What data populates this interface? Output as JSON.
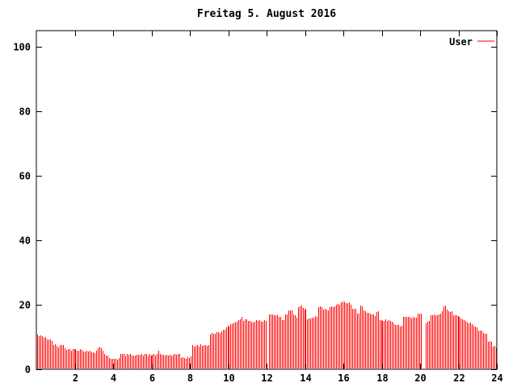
{
  "window": {
    "background": "#ffffff"
  },
  "colors": {
    "background": "#ffffff",
    "axis": "#000000",
    "bar": "#ff0000",
    "text": "#000000"
  },
  "chart_data": {
    "type": "bar",
    "title": "Freitag 5. August 2016",
    "xlabel": "",
    "ylabel": "",
    "grid": false,
    "x_axis": {
      "min": 0,
      "max": 24,
      "ticks": [
        2,
        4,
        6,
        8,
        10,
        12,
        14,
        16,
        18,
        20,
        22,
        24
      ]
    },
    "y_axis": {
      "min": 0,
      "max": 105,
      "ticks": [
        0,
        20,
        40,
        60,
        80,
        100
      ]
    },
    "legend": {
      "position": "top-right",
      "entries": [
        {
          "label": "User",
          "color": "#ff0000"
        }
      ]
    },
    "series": [
      {
        "name": "User",
        "style": "impulses",
        "color": "#ff0000",
        "samples_per_hour": 12,
        "gaps_hours": [
          12.08,
          20.17
        ],
        "envelope_segments": [
          [
            0.0,
            0.1,
            11.0,
            10.4
          ],
          [
            0.1,
            0.5,
            10.2,
            10.0
          ],
          [
            0.5,
            0.8,
            9.5,
            8.8
          ],
          [
            0.8,
            1.0,
            8.0,
            7.2
          ],
          [
            1.0,
            1.2,
            7.0,
            7.0
          ],
          [
            1.2,
            1.4,
            7.7,
            7.3
          ],
          [
            1.4,
            1.65,
            6.6,
            6.3
          ],
          [
            1.65,
            1.9,
            6.1,
            6.1
          ],
          [
            1.9,
            2.05,
            6.7,
            6.4
          ],
          [
            2.05,
            2.5,
            6.0,
            5.9
          ],
          [
            2.5,
            2.95,
            5.7,
            5.4
          ],
          [
            2.95,
            3.1,
            5.3,
            5.4
          ],
          [
            3.1,
            3.25,
            6.1,
            6.6
          ],
          [
            3.25,
            3.4,
            7.0,
            6.5
          ],
          [
            3.4,
            3.55,
            6.1,
            5.0
          ],
          [
            3.55,
            3.75,
            4.6,
            3.9
          ],
          [
            3.75,
            4.35,
            3.3,
            3.4
          ],
          [
            4.35,
            6.3,
            4.5,
            4.5
          ],
          [
            6.3,
            6.45,
            6.3,
            5.2
          ],
          [
            6.45,
            7.5,
            4.5,
            4.4
          ],
          [
            7.5,
            8.1,
            3.6,
            3.7
          ],
          [
            8.1,
            9.0,
            7.3,
            7.5
          ],
          [
            9.0,
            9.65,
            11.0,
            11.5
          ],
          [
            9.65,
            9.9,
            12.3,
            12.7
          ],
          [
            9.9,
            10.45,
            13.4,
            14.4
          ],
          [
            10.45,
            10.65,
            14.8,
            15.5
          ],
          [
            10.65,
            10.78,
            16.8,
            16.2
          ],
          [
            10.78,
            11.2,
            15.4,
            15.1
          ],
          [
            11.2,
            12.04,
            14.8,
            15.2
          ],
          [
            12.12,
            12.5,
            17.0,
            16.9
          ],
          [
            12.5,
            12.72,
            16.6,
            16.3
          ],
          [
            12.72,
            12.95,
            15.1,
            15.2
          ],
          [
            12.95,
            13.1,
            16.8,
            17.5
          ],
          [
            13.1,
            13.3,
            18.4,
            18.3
          ],
          [
            13.3,
            13.5,
            17.0,
            16.9
          ],
          [
            13.5,
            13.6,
            16.3,
            16.3
          ],
          [
            13.6,
            13.8,
            19.0,
            20.0
          ],
          [
            13.8,
            14.1,
            19.2,
            18.7
          ],
          [
            14.1,
            14.5,
            15.8,
            15.7
          ],
          [
            14.5,
            14.65,
            16.3,
            16.4
          ],
          [
            14.65,
            14.95,
            19.5,
            19.1
          ],
          [
            14.95,
            15.25,
            18.3,
            18.5
          ],
          [
            15.25,
            15.55,
            19.2,
            19.6
          ],
          [
            15.55,
            15.8,
            19.8,
            20.0
          ],
          [
            15.8,
            16.3,
            20.5,
            21.0
          ],
          [
            16.3,
            16.45,
            20.0,
            19.9
          ],
          [
            16.45,
            16.65,
            18.7,
            18.5
          ],
          [
            16.65,
            16.85,
            17.2,
            17.0
          ],
          [
            16.85,
            17.0,
            19.5,
            19.0
          ],
          [
            17.0,
            17.2,
            18.2,
            18.0
          ],
          [
            17.2,
            17.5,
            17.5,
            17.0
          ],
          [
            17.5,
            17.7,
            16.7,
            16.4
          ],
          [
            17.7,
            17.82,
            18.0,
            17.6
          ],
          [
            17.82,
            18.25,
            15.5,
            15.3
          ],
          [
            18.25,
            18.6,
            14.9,
            14.7
          ],
          [
            18.6,
            18.9,
            14.1,
            13.9
          ],
          [
            18.9,
            19.1,
            13.7,
            13.6
          ],
          [
            19.1,
            19.4,
            16.2,
            16.0
          ],
          [
            19.4,
            19.8,
            15.9,
            16.1
          ],
          [
            19.8,
            20.12,
            17.2,
            17.4
          ],
          [
            20.21,
            20.35,
            15.2,
            13.8
          ],
          [
            20.35,
            20.5,
            14.8,
            15.2
          ],
          [
            20.5,
            20.9,
            16.7,
            17.0
          ],
          [
            20.9,
            21.18,
            17.4,
            17.7
          ],
          [
            21.18,
            21.32,
            19.8,
            19.4
          ],
          [
            21.32,
            21.45,
            18.6,
            18.5
          ],
          [
            21.45,
            21.65,
            18.1,
            17.7
          ],
          [
            21.65,
            21.95,
            17.1,
            16.8
          ],
          [
            21.95,
            22.2,
            16.3,
            15.8
          ],
          [
            22.2,
            22.45,
            15.1,
            14.7
          ],
          [
            22.45,
            22.75,
            14.4,
            14.0
          ],
          [
            22.75,
            23.0,
            13.8,
            13.2
          ],
          [
            23.0,
            23.25,
            12.3,
            11.9
          ],
          [
            23.25,
            23.5,
            11.3,
            10.5
          ],
          [
            23.5,
            23.75,
            8.9,
            8.5
          ],
          [
            23.75,
            24.0,
            7.3,
            6.5
          ]
        ]
      }
    ]
  }
}
